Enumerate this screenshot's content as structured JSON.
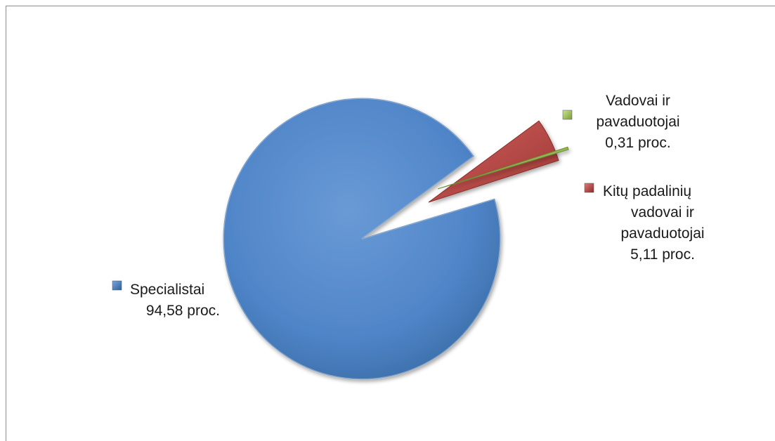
{
  "chart_data": {
    "type": "pie",
    "title": "",
    "series": [
      {
        "values": [
          {
            "name": "Specialistai",
            "value": 94.58,
            "label": "94,58 proc.",
            "color": "#4f81bd",
            "exploded": false
          },
          {
            "name": "Kitų padalinių vadovai ir pavaduotojai",
            "value": 5.11,
            "label": "5,11 proc.",
            "color": "#c0504d",
            "exploded": true
          },
          {
            "name": "Vadovai ir pavaduotojai",
            "value": 0.31,
            "label": "0,31 proc.",
            "color": "#9bbb59",
            "exploded": true
          }
        ]
      }
    ],
    "data_labels": [
      {
        "lines": [
          "Specialistai",
          "94,58 proc."
        ]
      },
      {
        "lines": [
          "Kitų padalinių",
          "vadovai ir",
          "pavaduotojai",
          "5,11 proc."
        ]
      },
      {
        "lines": [
          "Vadovai ir",
          "pavaduotojai",
          "0,31 proc."
        ]
      }
    ],
    "legend": "none",
    "style": "3d-beveled"
  }
}
